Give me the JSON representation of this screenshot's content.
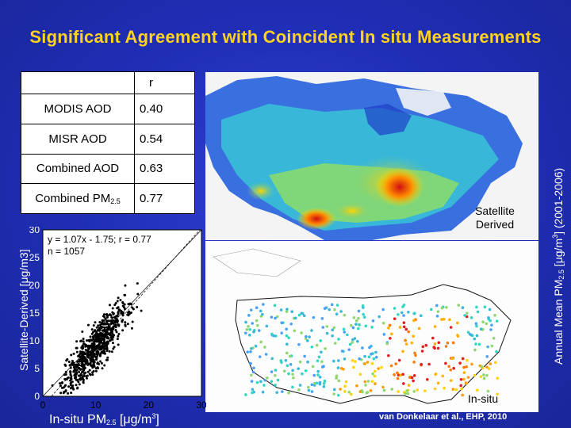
{
  "title": "Significant Agreement with Coincident In situ Measurements",
  "table": {
    "header": "r",
    "rows": [
      {
        "label": "MODIS AOD",
        "value": "0.40"
      },
      {
        "label": "MISR AOD",
        "value": "0.54"
      },
      {
        "label": "Combined AOD",
        "value": "0.63"
      },
      {
        "label": "Combined PM",
        "label_sub": "2.5",
        "value": "0.77"
      }
    ]
  },
  "maps": {
    "satellite_label": "Satellite Derived",
    "insitu_label": "In-situ",
    "colorbar_label": "Annual Mean PM",
    "colorbar_label_sub": "2.5",
    "colorbar_label_unit_pre": " [μg/m",
    "colorbar_label_unit_sup": "3",
    "colorbar_label_unit_post": "] (2001-2006)"
  },
  "scatter": {
    "ylabel": "Satellite-Derived [μg/m3]",
    "xlabel_pre": "In-situ PM",
    "xlabel_sub": "2.5",
    "xlabel_unit_pre": " [μg/m",
    "xlabel_unit_sup": "3",
    "xlabel_unit_post": "]",
    "annotation_line1": "y = 1.07x - 1.75; r = 0.77",
    "annotation_line2": "n = 1057"
  },
  "reference": "van Donkelaar et al., EHP, 2010",
  "chart_data": {
    "type": "scatter",
    "xlabel": "In-situ PM2.5 [μg/m3]",
    "ylabel": "Satellite-Derived [μg/m3]",
    "xlim": [
      0,
      30
    ],
    "ylim": [
      0,
      30
    ],
    "xticks": [
      "0",
      "10",
      "20",
      "30"
    ],
    "yticks": [
      "0",
      "5",
      "10",
      "15",
      "20",
      "25",
      "30"
    ],
    "fit": {
      "slope": 1.07,
      "intercept": -1.75,
      "r": 0.77,
      "n": 1057
    }
  }
}
